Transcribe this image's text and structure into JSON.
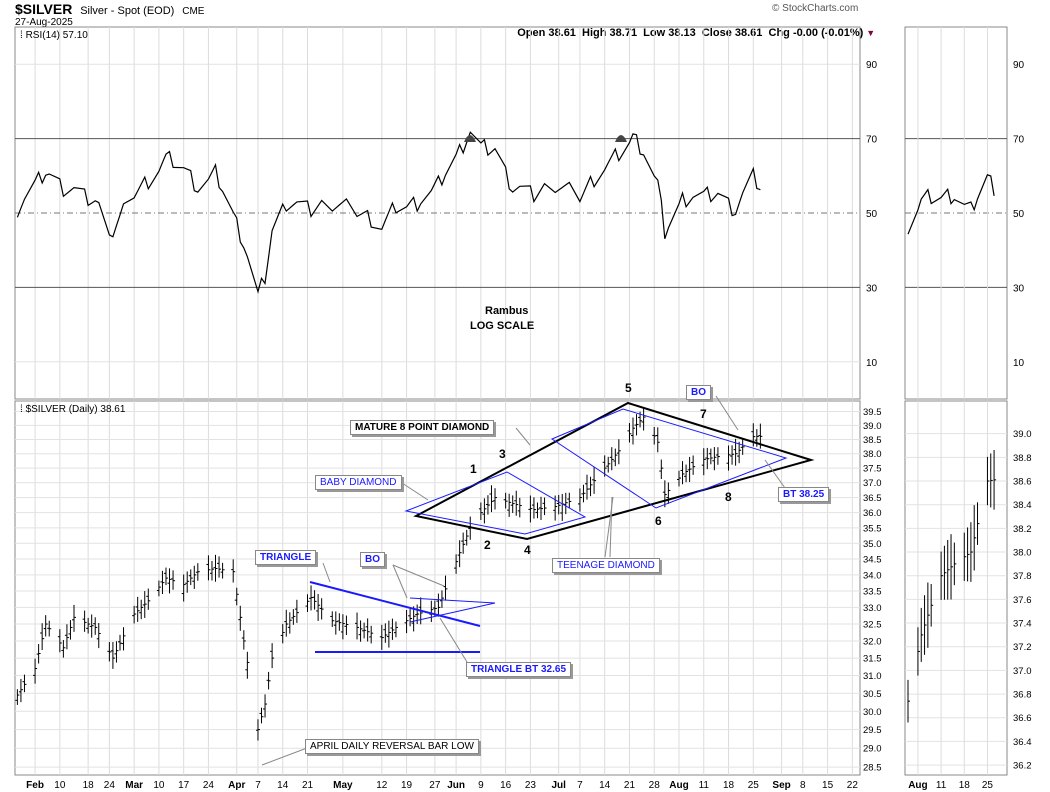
{
  "header": {
    "symbol": "$SILVER",
    "description": "Silver - Spot (EOD)",
    "exchange": "CME",
    "date": "27-Aug-2025",
    "watermark": "© StockCharts.com",
    "ohlc": "Open 38.61  High 38.71  Low 38.13  Close 38.61  Chg -0.00 (-0.01%)"
  },
  "rsi_panel": {
    "label": "RSI(14) 57.10",
    "axis_ticks": [
      "90",
      "70",
      "50",
      "30",
      "10"
    ]
  },
  "price_panel": {
    "label": "$SILVER (Daily) 38.61",
    "axis_ticks": [
      "39.5",
      "39.0",
      "38.5",
      "38.0",
      "37.5",
      "37.0",
      "36.5",
      "36.0",
      "35.5",
      "35.0",
      "34.5",
      "34.0",
      "33.5",
      "33.0",
      "32.5",
      "32.0",
      "31.5",
      "31.0",
      "30.5",
      "30.0",
      "29.5",
      "29.0",
      "28.5"
    ]
  },
  "zoom_price_axis_ticks": [
    "39.0",
    "38.8",
    "38.6",
    "38.4",
    "38.2",
    "38.0",
    "37.8",
    "37.6",
    "37.4",
    "37.2",
    "37.0",
    "36.8",
    "36.6",
    "36.4",
    "36.2"
  ],
  "x_axis": {
    "labels": [
      "Feb",
      "10",
      "18",
      "24",
      "Mar",
      "10",
      "17",
      "24",
      "Apr",
      "7",
      "14",
      "21",
      "May",
      "12",
      "19",
      "27",
      "Jun",
      "9",
      "16",
      "23",
      "Jul",
      "7",
      "14",
      "21",
      "28",
      "Aug",
      "11",
      "18",
      "25",
      "Sep",
      "8",
      "15",
      "22"
    ]
  },
  "zoom_x_axis": {
    "labels": [
      "Aug",
      "11",
      "18",
      "25"
    ]
  },
  "annotations": {
    "rambus": "Rambus",
    "log_scale": "LOG SCALE",
    "mature_diamond": "MATURE 8 POINT DIAMOND",
    "baby_diamond": "BABY DIAMOND",
    "teenage_diamond": "TEENAGE DIAMOND",
    "triangle": "TRIANGLE",
    "bo1": "BO",
    "bo2": "BO",
    "triangle_bt": "TRIANGLE BT 32.65",
    "bt": "BT 38.25",
    "april_low": "APRIL DAILY REVERSAL BAR LOW",
    "points": [
      "1",
      "2",
      "3",
      "4",
      "5",
      "6",
      "7",
      "8"
    ]
  },
  "colors": {
    "price": "#000000",
    "blue_lines": "#1a1aff",
    "grid": "#c8c8c8",
    "rsi_line": "#000000",
    "overbought_fill": "#444444"
  },
  "chart_data": {
    "type": "line",
    "title": "$SILVER (Daily) 38.61",
    "scale": "log",
    "ylim": [
      28.4,
      39.7
    ],
    "x_range": [
      "2025-02-01",
      "2025-09-24"
    ],
    "price": {
      "name": "$SILVER",
      "x": [
        "2025-01-28",
        "2025-02-03",
        "2025-02-06",
        "2025-02-11",
        "2025-02-14",
        "2025-02-20",
        "2025-02-25",
        "2025-03-03",
        "2025-03-07",
        "2025-03-12",
        "2025-03-17",
        "2025-03-21",
        "2025-03-26",
        "2025-03-31",
        "2025-04-03",
        "2025-04-07",
        "2025-04-09",
        "2025-04-11",
        "2025-04-15",
        "2025-04-22",
        "2025-04-28",
        "2025-05-05",
        "2025-05-12",
        "2025-05-16",
        "2025-05-22",
        "2025-05-28",
        "2025-06-03",
        "2025-06-06",
        "2025-06-09",
        "2025-06-13",
        "2025-06-18",
        "2025-06-24",
        "2025-06-30",
        "2025-07-07",
        "2025-07-14",
        "2025-07-18",
        "2025-07-22",
        "2025-07-25",
        "2025-07-29",
        "2025-07-31",
        "2025-08-05",
        "2025-08-11",
        "2025-08-15",
        "2025-08-20",
        "2025-08-25",
        "2025-08-27"
      ],
      "y": [
        30.3,
        31.2,
        32.5,
        31.8,
        32.7,
        32.4,
        31.5,
        32.8,
        33.2,
        33.9,
        33.7,
        34.1,
        34.2,
        34.1,
        32.0,
        29.5,
        30.2,
        31.5,
        32.5,
        33.3,
        32.6,
        32.4,
        32.1,
        32.4,
        32.8,
        33.0,
        34.7,
        35.5,
        36.0,
        36.5,
        36.3,
        36.1,
        36.2,
        36.5,
        37.5,
        38.1,
        38.9,
        39.3,
        38.4,
        36.6,
        37.3,
        37.8,
        37.9,
        38.0,
        38.6,
        38.61
      ]
    },
    "rsi": {
      "name": "RSI(14)",
      "ylim": [
        0,
        100
      ],
      "ref_lines": [
        30,
        50,
        70
      ],
      "x": [
        "2025-01-28",
        "2025-02-03",
        "2025-02-06",
        "2025-02-11",
        "2025-02-14",
        "2025-02-20",
        "2025-02-25",
        "2025-03-03",
        "2025-03-07",
        "2025-03-12",
        "2025-03-17",
        "2025-03-21",
        "2025-03-26",
        "2025-03-31",
        "2025-04-03",
        "2025-04-07",
        "2025-04-09",
        "2025-04-11",
        "2025-04-15",
        "2025-04-22",
        "2025-04-28",
        "2025-05-05",
        "2025-05-12",
        "2025-05-16",
        "2025-05-22",
        "2025-05-28",
        "2025-06-03",
        "2025-06-06",
        "2025-06-09",
        "2025-06-13",
        "2025-06-18",
        "2025-06-24",
        "2025-06-30",
        "2025-07-07",
        "2025-07-14",
        "2025-07-18",
        "2025-07-22",
        "2025-07-25",
        "2025-07-29",
        "2025-07-31",
        "2025-08-05",
        "2025-08-11",
        "2025-08-15",
        "2025-08-20",
        "2025-08-25",
        "2025-08-27"
      ],
      "y": [
        50,
        58,
        61,
        57,
        56,
        53,
        45,
        56,
        59,
        65,
        63,
        57,
        61,
        50,
        42,
        28,
        33,
        45,
        53,
        51,
        53,
        51,
        47,
        52,
        53,
        58,
        67,
        72,
        68,
        67,
        57,
        55,
        58,
        55,
        63,
        66,
        71,
        67,
        58,
        45,
        54,
        55,
        55,
        51,
        60,
        57.1
      ]
    }
  }
}
